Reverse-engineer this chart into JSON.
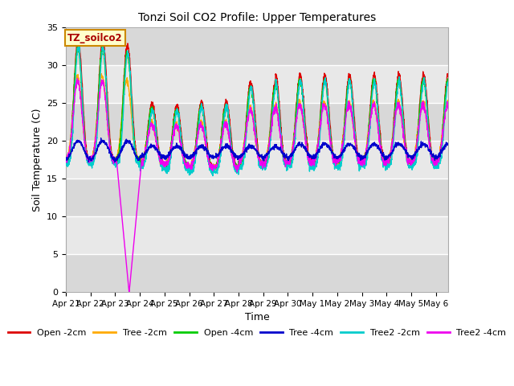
{
  "title": "Tonzi Soil CO2 Profile: Upper Temperatures",
  "xlabel": "Time",
  "ylabel": "Soil Temperature (C)",
  "ylim": [
    0,
    35
  ],
  "xlim_days": 15.5,
  "background_color": "#ffffff",
  "plot_bg_color": "#e0e0e0",
  "grid_color": "#ffffff",
  "legend_label": "TZ_soilco2",
  "series_colors": {
    "Open -2cm": "#dd0000",
    "Tree -2cm": "#ffaa00",
    "Open -4cm": "#00cc00",
    "Tree -4cm": "#0000cc",
    "Tree2 -2cm": "#00cccc",
    "Tree2 -4cm": "#ee00ee"
  },
  "x_tick_labels": [
    "Apr 21",
    "Apr 22",
    "Apr 23",
    "Apr 24",
    "Apr 25",
    "Apr 26",
    "Apr 27",
    "Apr 28",
    "Apr 29",
    "Apr 30",
    "May 1",
    "May 2",
    "May 3",
    "May 4",
    "May 5",
    "May 6"
  ],
  "y_ticks": [
    0,
    5,
    10,
    15,
    20,
    25,
    30,
    35
  ],
  "figsize": [
    6.4,
    4.8
  ],
  "dpi": 100
}
